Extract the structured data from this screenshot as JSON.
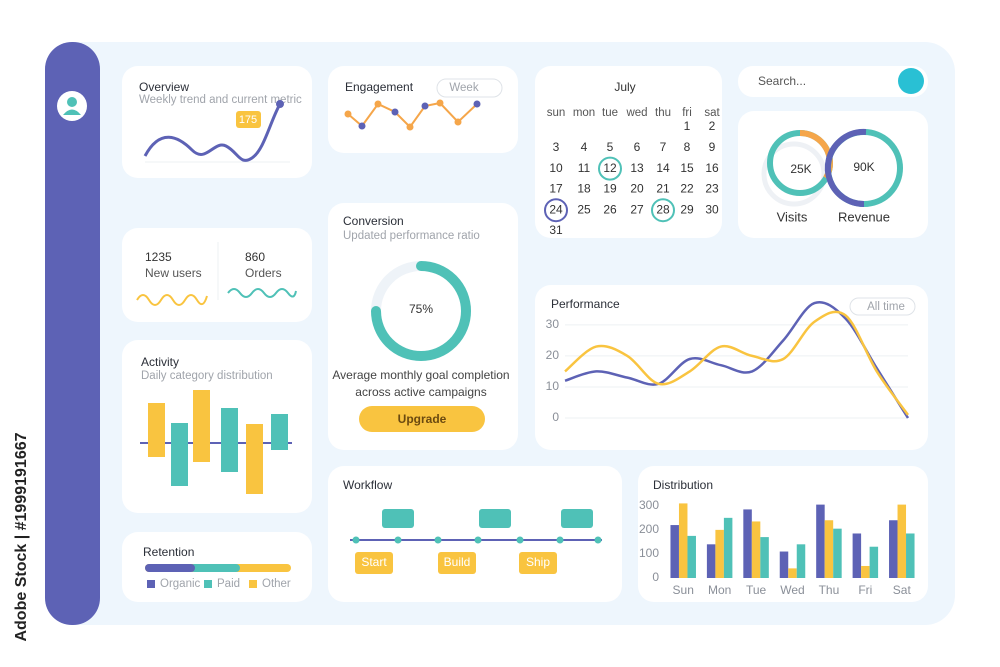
{
  "watermark": "Adobe Stock | #1999191667",
  "search": {
    "placeholder": "Search..."
  },
  "overview": {
    "title": "Overview",
    "subtitle": "Weekly trend and current metric",
    "badge": "175"
  },
  "engagement": {
    "title": "Engagement",
    "period": "Week"
  },
  "calendar": {
    "month": "July",
    "weekdays": [
      "sun",
      "mon",
      "tue",
      "wed",
      "thu",
      "fri",
      "sat"
    ],
    "days": [
      1,
      2,
      3,
      4,
      5,
      6,
      7,
      8,
      9,
      10,
      11,
      12,
      13,
      14,
      15,
      16,
      17,
      18,
      19,
      20,
      21,
      22,
      23,
      24,
      25,
      26,
      27,
      28,
      29,
      30,
      31
    ]
  },
  "rings": {
    "visits": {
      "value": "25K",
      "label": "Visits"
    },
    "revenue": {
      "value": "90K",
      "label": "Revenue"
    }
  },
  "stats": {
    "new_users": {
      "value": 1235,
      "label": "New users"
    },
    "orders": {
      "value": 860,
      "label": "Orders"
    }
  },
  "conversion": {
    "title": "Conversion",
    "subtitle": "Updated performance ratio",
    "value": 75,
    "value_label": "75%",
    "caption": [
      "Average monthly goal completion",
      "across active campaigns"
    ],
    "button": "Upgrade"
  },
  "activity": {
    "title": "Activity",
    "subtitle": "Daily category distribution"
  },
  "retention": {
    "title": "Retention",
    "legend": [
      "Organic",
      "Paid",
      "Other"
    ]
  },
  "workflow": {
    "title": "Workflow",
    "steps": [
      "Start",
      "Build",
      "Ship"
    ]
  },
  "chart_data": [
    {
      "type": "line",
      "title": "Performance",
      "filter": "All time",
      "categories": [
        null,
        null,
        null,
        null,
        null,
        null,
        null,
        null,
        null,
        null,
        null,
        null
      ],
      "series": [
        {
          "color": "#5d62b5",
          "values": [
            12,
            15,
            13,
            11,
            19,
            17,
            15,
            25,
            37,
            32,
            16,
            0
          ]
        },
        {
          "color": "#f9c440",
          "values": [
            15,
            23,
            20,
            11,
            15,
            23,
            20,
            19,
            31,
            33,
            15,
            1
          ]
        }
      ],
      "ylim": [
        0,
        38
      ],
      "yticks": [
        0,
        10,
        20,
        30
      ],
      "grid": true
    },
    {
      "type": "bar",
      "title": "Distribution",
      "categories": [
        "Sun",
        "Mon",
        "Tue",
        "Wed",
        "Thu",
        "Fri",
        "Sat"
      ],
      "series": [
        {
          "color": "#5d62b5",
          "values": [
            220,
            140,
            285,
            110,
            305,
            185,
            240
          ]
        },
        {
          "color": "#f9c440",
          "values": [
            310,
            200,
            235,
            40,
            240,
            50,
            305
          ]
        },
        {
          "color": "#4fc1b7",
          "values": [
            175,
            250,
            170,
            140,
            205,
            130,
            185
          ]
        }
      ],
      "ylim": [
        0,
        320
      ],
      "yticks": [
        0,
        100,
        200,
        300
      ],
      "grid": false
    }
  ]
}
